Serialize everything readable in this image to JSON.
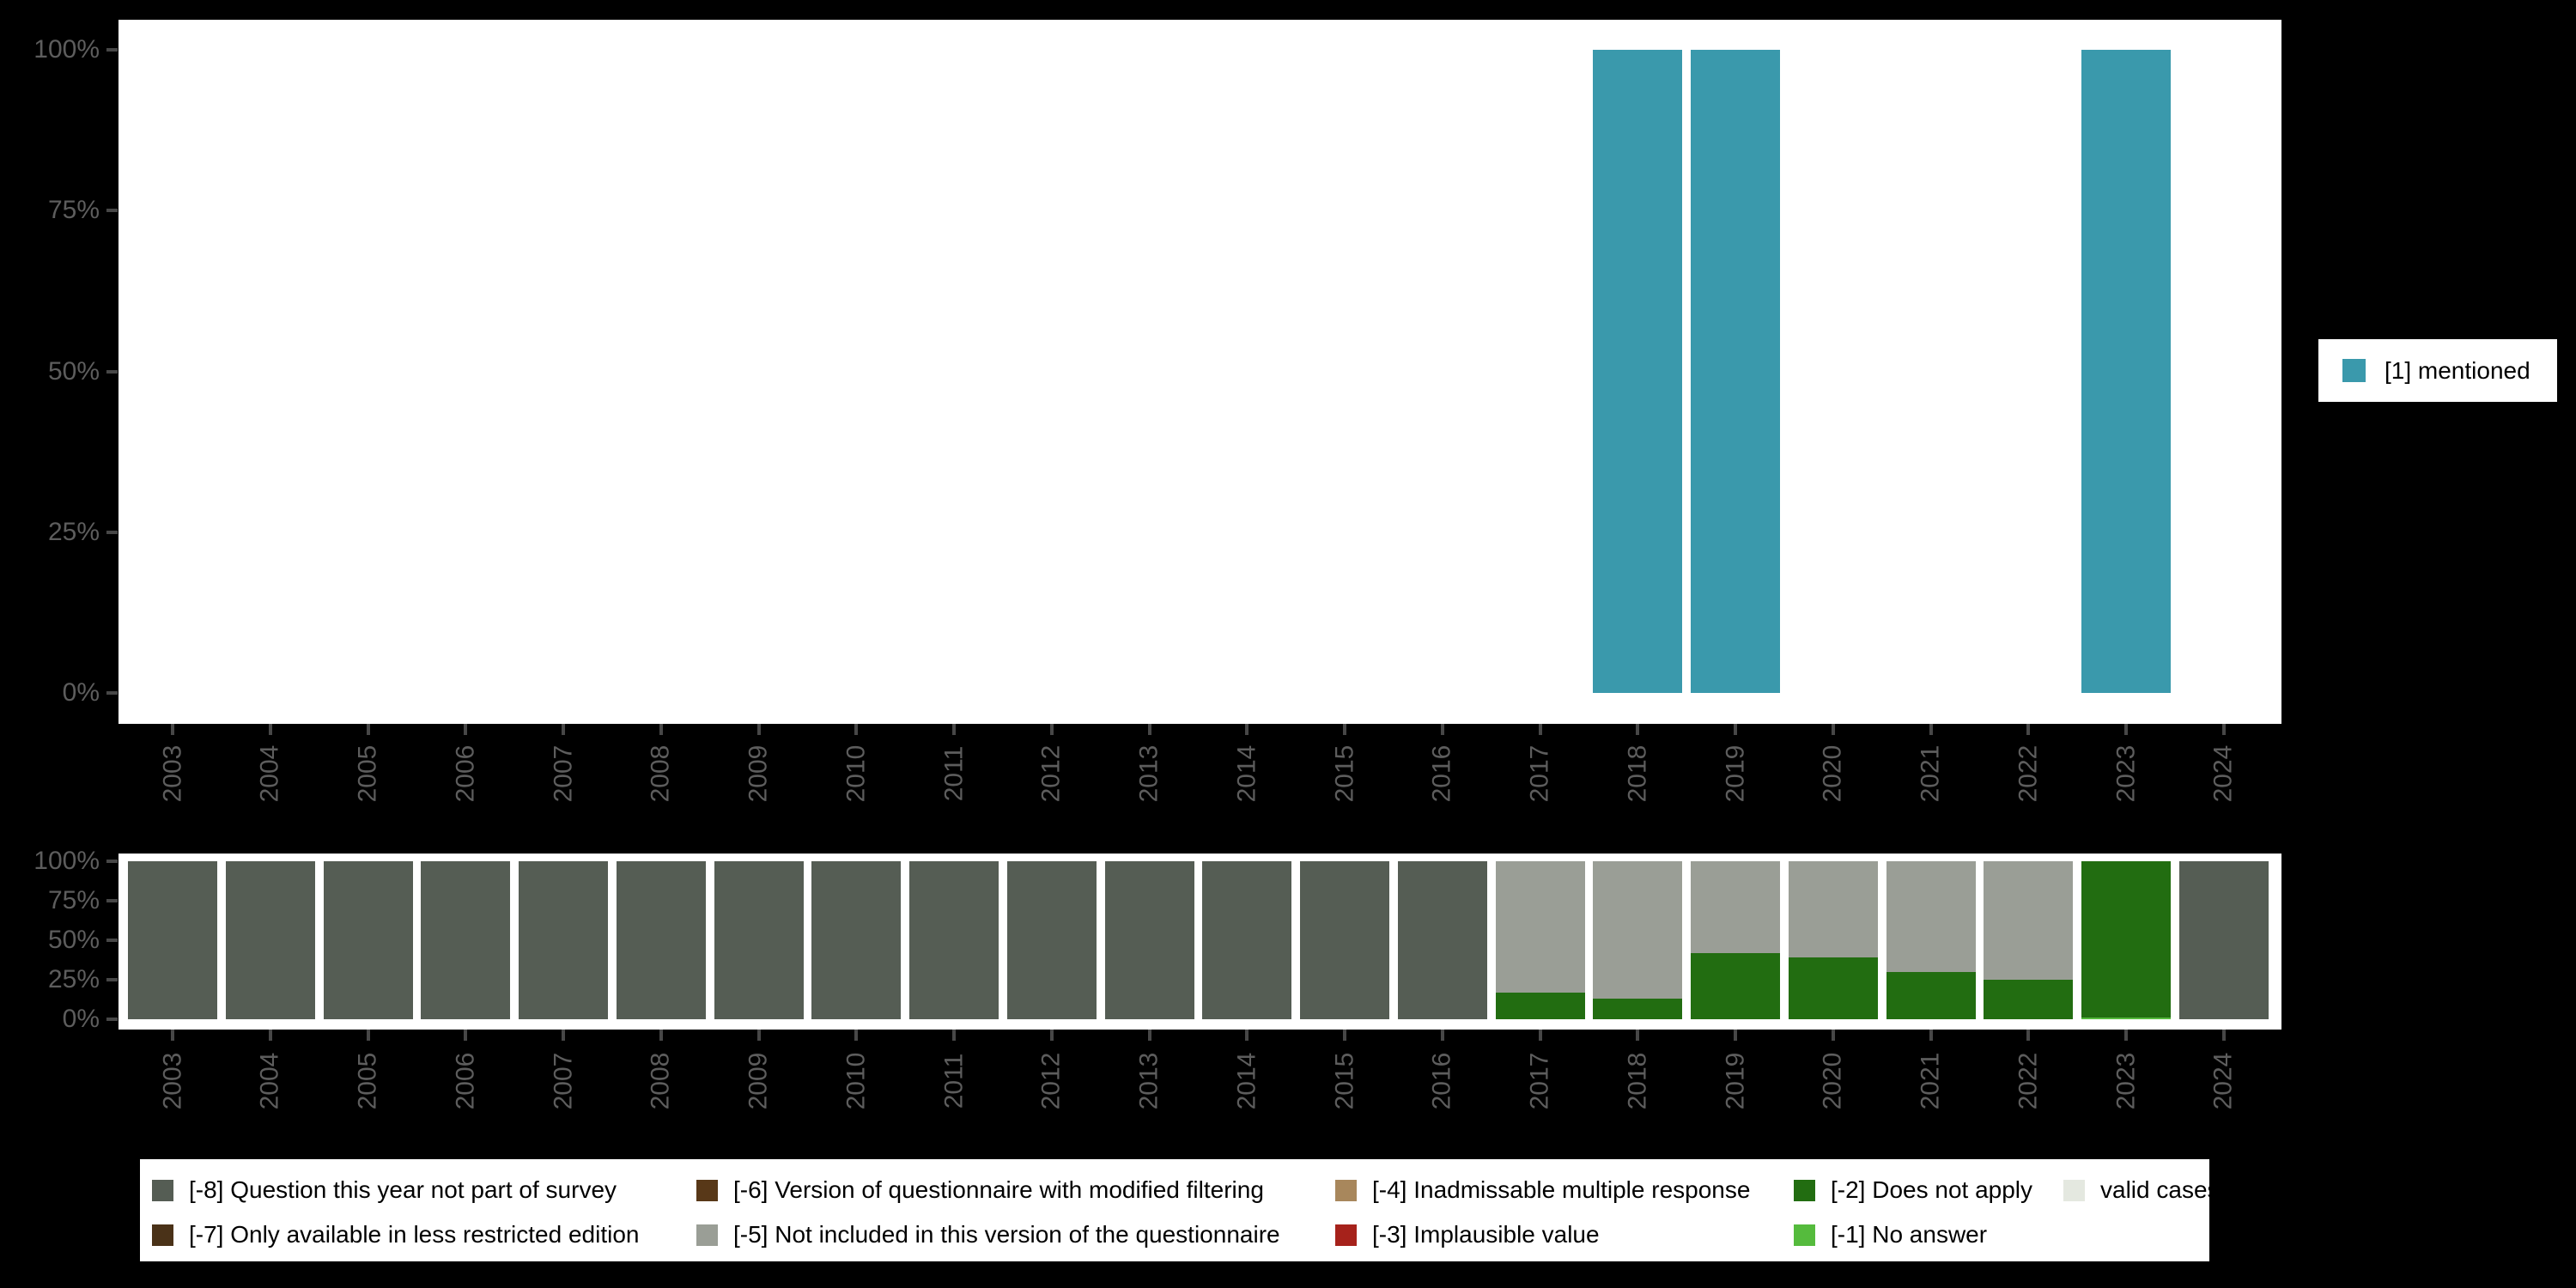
{
  "colors": {
    "mentioned": "#3a99ac",
    "-8": "#555d54",
    "-7": "#4a3218",
    "-6": "#583818",
    "-5": "#9a9e96",
    "-4": "#a8875c",
    "-3": "#a6221b",
    "-2": "#226d11",
    "-1": "#55bb3d",
    "valid": "#e4e8e0",
    "background": "#000000",
    "panel": "#ffffff",
    "axis_text": "#5d5d5d"
  },
  "top_legend": {
    "label": "[1] mentioned"
  },
  "chart_data": [
    {
      "type": "bar",
      "title": "",
      "xlabel": "",
      "ylabel": "",
      "ylim": [
        0,
        100
      ],
      "grid": false,
      "legend_position": "right",
      "y_ticks": [
        {
          "label": "100%",
          "value": 100
        },
        {
          "label": "75%",
          "value": 75
        },
        {
          "label": "50%",
          "value": 50
        },
        {
          "label": "25%",
          "value": 25
        },
        {
          "label": "0%",
          "value": 0
        }
      ],
      "categories": [
        "2003",
        "2004",
        "2005",
        "2006",
        "2007",
        "2008",
        "2009",
        "2010",
        "2011",
        "2012",
        "2013",
        "2014",
        "2015",
        "2016",
        "2017",
        "2018",
        "2019",
        "2020",
        "2021",
        "2022",
        "2023",
        "2024"
      ],
      "series": [
        {
          "name": "[1] mentioned",
          "color_key": "mentioned",
          "values": [
            null,
            null,
            null,
            null,
            null,
            null,
            null,
            null,
            null,
            null,
            null,
            null,
            null,
            null,
            null,
            100,
            100,
            null,
            null,
            null,
            100,
            null
          ]
        }
      ]
    },
    {
      "type": "bar-stacked",
      "title": "",
      "xlabel": "",
      "ylabel": "",
      "ylim": [
        0,
        100
      ],
      "grid": false,
      "legend_position": "bottom",
      "y_ticks": [
        {
          "label": "100%",
          "value": 100
        },
        {
          "label": "75%",
          "value": 75
        },
        {
          "label": "50%",
          "value": 50
        },
        {
          "label": "25%",
          "value": 25
        },
        {
          "label": "0%",
          "value": 0
        }
      ],
      "categories": [
        "2003",
        "2004",
        "2005",
        "2006",
        "2007",
        "2008",
        "2009",
        "2010",
        "2011",
        "2012",
        "2013",
        "2014",
        "2015",
        "2016",
        "2017",
        "2018",
        "2019",
        "2020",
        "2021",
        "2022",
        "2023",
        "2024"
      ],
      "series": [
        {
          "name": "[-1] No answer",
          "color_key": "-1",
          "values": [
            0,
            0,
            0,
            0,
            0,
            0,
            0,
            0,
            0,
            0,
            0,
            0,
            0,
            0,
            0,
            0,
            0,
            0,
            0,
            0,
            1,
            0
          ]
        },
        {
          "name": "[-2] Does not apply",
          "color_key": "-2",
          "values": [
            0,
            0,
            0,
            0,
            0,
            0,
            0,
            0,
            0,
            0,
            0,
            0,
            0,
            0,
            17,
            13,
            42,
            39,
            30,
            25,
            99,
            0
          ]
        },
        {
          "name": "[-5] Not included in this version of the questionnaire",
          "color_key": "-5",
          "values": [
            0,
            0,
            0,
            0,
            0,
            0,
            0,
            0,
            0,
            0,
            0,
            0,
            0,
            0,
            83,
            87,
            58,
            61,
            70,
            75,
            0,
            0
          ]
        },
        {
          "name": "[-8] Question this year not part of survey",
          "color_key": "-8",
          "values": [
            100,
            100,
            100,
            100,
            100,
            100,
            100,
            100,
            100,
            100,
            100,
            100,
            100,
            100,
            0,
            0,
            0,
            0,
            0,
            0,
            0,
            100
          ]
        }
      ]
    }
  ],
  "bottom_legend": {
    "columns": [
      {
        "items": [
          {
            "label": "[-8] Question this year not part of survey",
            "color_key": "-8"
          },
          {
            "label": "[-7] Only available in less restricted edition",
            "color_key": "-7"
          }
        ]
      },
      {
        "items": [
          {
            "label": "[-6] Version of questionnaire with modified filtering",
            "color_key": "-6"
          },
          {
            "label": "[-5] Not included in this version of the questionnaire",
            "color_key": "-5"
          }
        ]
      },
      {
        "items": [
          {
            "label": "[-4] Inadmissable multiple response",
            "color_key": "-4"
          },
          {
            "label": "[-3] Implausible value",
            "color_key": "-3"
          }
        ]
      },
      {
        "items": [
          {
            "label": "[-2] Does not apply",
            "color_key": "-2"
          },
          {
            "label": "[-1] No answer",
            "color_key": "-1"
          }
        ]
      },
      {
        "items": [
          {
            "label": "valid cases",
            "color_key": "valid"
          }
        ]
      }
    ]
  }
}
